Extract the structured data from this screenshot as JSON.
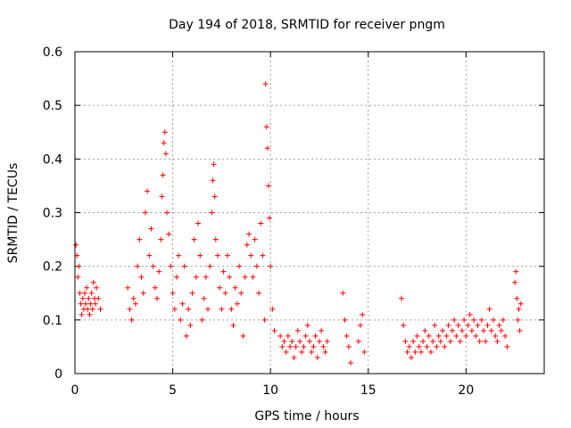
{
  "chart_data": {
    "type": "scatter",
    "title": "Day 194 of 2018, SRMTID for receiver pngm",
    "xlabel": "GPS time / hours",
    "ylabel": "SRMTID / TECUs",
    "xlim": [
      0,
      24
    ],
    "ylim": [
      0,
      0.6
    ],
    "xticks": [
      0,
      5,
      10,
      15,
      20
    ],
    "yticks": [
      0,
      0.1,
      0.2,
      0.3,
      0.4,
      0.5,
      0.6
    ],
    "xtick_labels": [
      "0",
      "5",
      "10",
      "15",
      "20"
    ],
    "ytick_labels": [
      "0",
      "0.1",
      "0.2",
      "0.3",
      "0.4",
      "0.5",
      "0.6"
    ],
    "grid": true,
    "marker": "+",
    "color": "#ff0000",
    "series": [
      {
        "name": "SRMTID",
        "points": [
          [
            0.05,
            0.24
          ],
          [
            0.1,
            0.22
          ],
          [
            0.15,
            0.18
          ],
          [
            0.2,
            0.2
          ],
          [
            0.25,
            0.15
          ],
          [
            0.3,
            0.13
          ],
          [
            0.35,
            0.11
          ],
          [
            0.4,
            0.14
          ],
          [
            0.45,
            0.12
          ],
          [
            0.5,
            0.15
          ],
          [
            0.55,
            0.13
          ],
          [
            0.6,
            0.16
          ],
          [
            0.65,
            0.12
          ],
          [
            0.7,
            0.14
          ],
          [
            0.75,
            0.11
          ],
          [
            0.8,
            0.13
          ],
          [
            0.85,
            0.15
          ],
          [
            0.9,
            0.12
          ],
          [
            0.95,
            0.17
          ],
          [
            1.0,
            0.14
          ],
          [
            1.05,
            0.13
          ],
          [
            1.1,
            0.16
          ],
          [
            1.2,
            0.14
          ],
          [
            1.3,
            0.12
          ],
          [
            2.7,
            0.16
          ],
          [
            2.8,
            0.12
          ],
          [
            2.9,
            0.1
          ],
          [
            3.0,
            0.14
          ],
          [
            3.1,
            0.13
          ],
          [
            3.2,
            0.2
          ],
          [
            3.3,
            0.25
          ],
          [
            3.4,
            0.18
          ],
          [
            3.5,
            0.15
          ],
          [
            3.6,
            0.3
          ],
          [
            3.7,
            0.34
          ],
          [
            3.8,
            0.22
          ],
          [
            3.9,
            0.27
          ],
          [
            4.0,
            0.2
          ],
          [
            4.1,
            0.16
          ],
          [
            4.2,
            0.14
          ],
          [
            4.3,
            0.19
          ],
          [
            4.4,
            0.25
          ],
          [
            4.45,
            0.33
          ],
          [
            4.5,
            0.37
          ],
          [
            4.55,
            0.43
          ],
          [
            4.6,
            0.45
          ],
          [
            4.65,
            0.41
          ],
          [
            4.7,
            0.3
          ],
          [
            4.8,
            0.26
          ],
          [
            4.9,
            0.2
          ],
          [
            5.0,
            0.15
          ],
          [
            5.1,
            0.12
          ],
          [
            5.2,
            0.18
          ],
          [
            5.3,
            0.22
          ],
          [
            5.4,
            0.1
          ],
          [
            5.5,
            0.13
          ],
          [
            5.6,
            0.2
          ],
          [
            5.7,
            0.07
          ],
          [
            5.8,
            0.12
          ],
          [
            5.9,
            0.09
          ],
          [
            6.0,
            0.15
          ],
          [
            6.1,
            0.25
          ],
          [
            6.2,
            0.18
          ],
          [
            6.3,
            0.28
          ],
          [
            6.4,
            0.22
          ],
          [
            6.5,
            0.1
          ],
          [
            6.6,
            0.14
          ],
          [
            6.7,
            0.18
          ],
          [
            6.8,
            0.12
          ],
          [
            6.9,
            0.2
          ],
          [
            7.0,
            0.3
          ],
          [
            7.05,
            0.36
          ],
          [
            7.1,
            0.39
          ],
          [
            7.15,
            0.33
          ],
          [
            7.2,
            0.25
          ],
          [
            7.3,
            0.22
          ],
          [
            7.4,
            0.16
          ],
          [
            7.5,
            0.12
          ],
          [
            7.6,
            0.19
          ],
          [
            7.7,
            0.15
          ],
          [
            7.8,
            0.22
          ],
          [
            7.9,
            0.18
          ],
          [
            8.0,
            0.12
          ],
          [
            8.1,
            0.09
          ],
          [
            8.2,
            0.16
          ],
          [
            8.3,
            0.13
          ],
          [
            8.4,
            0.2
          ],
          [
            8.5,
            0.15
          ],
          [
            8.6,
            0.07
          ],
          [
            8.7,
            0.18
          ],
          [
            8.8,
            0.24
          ],
          [
            8.9,
            0.26
          ],
          [
            9.0,
            0.22
          ],
          [
            9.1,
            0.18
          ],
          [
            9.2,
            0.25
          ],
          [
            9.3,
            0.2
          ],
          [
            9.4,
            0.15
          ],
          [
            9.5,
            0.28
          ],
          [
            9.6,
            0.22
          ],
          [
            9.7,
            0.1
          ],
          [
            9.75,
            0.54
          ],
          [
            9.8,
            0.46
          ],
          [
            9.85,
            0.42
          ],
          [
            9.9,
            0.35
          ],
          [
            9.95,
            0.29
          ],
          [
            10.0,
            0.2
          ],
          [
            10.1,
            0.12
          ],
          [
            10.2,
            0.08
          ],
          [
            10.5,
            0.07
          ],
          [
            10.6,
            0.05
          ],
          [
            10.7,
            0.06
          ],
          [
            10.8,
            0.04
          ],
          [
            10.9,
            0.07
          ],
          [
            11.0,
            0.05
          ],
          [
            11.1,
            0.06
          ],
          [
            11.2,
            0.03
          ],
          [
            11.3,
            0.05
          ],
          [
            11.4,
            0.08
          ],
          [
            11.5,
            0.06
          ],
          [
            11.6,
            0.04
          ],
          [
            11.7,
            0.05
          ],
          [
            11.8,
            0.07
          ],
          [
            11.9,
            0.09
          ],
          [
            12.0,
            0.06
          ],
          [
            12.1,
            0.04
          ],
          [
            12.2,
            0.05
          ],
          [
            12.3,
            0.07
          ],
          [
            12.4,
            0.03
          ],
          [
            12.5,
            0.06
          ],
          [
            12.6,
            0.08
          ],
          [
            12.7,
            0.05
          ],
          [
            12.8,
            0.04
          ],
          [
            12.9,
            0.06
          ],
          [
            13.7,
            0.15
          ],
          [
            13.8,
            0.1
          ],
          [
            13.9,
            0.07
          ],
          [
            14.0,
            0.05
          ],
          [
            14.1,
            0.02
          ],
          [
            14.5,
            0.06
          ],
          [
            14.6,
            0.09
          ],
          [
            14.7,
            0.11
          ],
          [
            14.8,
            0.04
          ],
          [
            16.7,
            0.14
          ],
          [
            16.8,
            0.09
          ],
          [
            16.9,
            0.06
          ],
          [
            17.0,
            0.04
          ],
          [
            17.1,
            0.05
          ],
          [
            17.2,
            0.03
          ],
          [
            17.3,
            0.06
          ],
          [
            17.4,
            0.04
          ],
          [
            17.5,
            0.07
          ],
          [
            17.6,
            0.05
          ],
          [
            17.7,
            0.04
          ],
          [
            17.8,
            0.06
          ],
          [
            17.9,
            0.08
          ],
          [
            18.0,
            0.05
          ],
          [
            18.1,
            0.07
          ],
          [
            18.2,
            0.04
          ],
          [
            18.3,
            0.06
          ],
          [
            18.4,
            0.09
          ],
          [
            18.5,
            0.05
          ],
          [
            18.6,
            0.07
          ],
          [
            18.7,
            0.06
          ],
          [
            18.8,
            0.08
          ],
          [
            18.9,
            0.05
          ],
          [
            19.0,
            0.07
          ],
          [
            19.1,
            0.09
          ],
          [
            19.2,
            0.06
          ],
          [
            19.3,
            0.08
          ],
          [
            19.4,
            0.1
          ],
          [
            19.5,
            0.07
          ],
          [
            19.6,
            0.09
          ],
          [
            19.7,
            0.06
          ],
          [
            19.8,
            0.08
          ],
          [
            19.9,
            0.1
          ],
          [
            20.0,
            0.07
          ],
          [
            20.1,
            0.09
          ],
          [
            20.2,
            0.11
          ],
          [
            20.3,
            0.08
          ],
          [
            20.4,
            0.1
          ],
          [
            20.5,
            0.07
          ],
          [
            20.6,
            0.09
          ],
          [
            20.7,
            0.06
          ],
          [
            20.8,
            0.1
          ],
          [
            20.9,
            0.08
          ],
          [
            21.0,
            0.06
          ],
          [
            21.1,
            0.09
          ],
          [
            21.2,
            0.12
          ],
          [
            21.3,
            0.08
          ],
          [
            21.4,
            0.1
          ],
          [
            21.5,
            0.07
          ],
          [
            21.6,
            0.06
          ],
          [
            21.7,
            0.09
          ],
          [
            21.8,
            0.08
          ],
          [
            21.9,
            0.1
          ],
          [
            22.0,
            0.07
          ],
          [
            22.1,
            0.05
          ],
          [
            22.5,
            0.17
          ],
          [
            22.55,
            0.19
          ],
          [
            22.6,
            0.14
          ],
          [
            22.65,
            0.1
          ],
          [
            22.7,
            0.12
          ],
          [
            22.75,
            0.08
          ],
          [
            22.8,
            0.13
          ]
        ]
      }
    ]
  }
}
